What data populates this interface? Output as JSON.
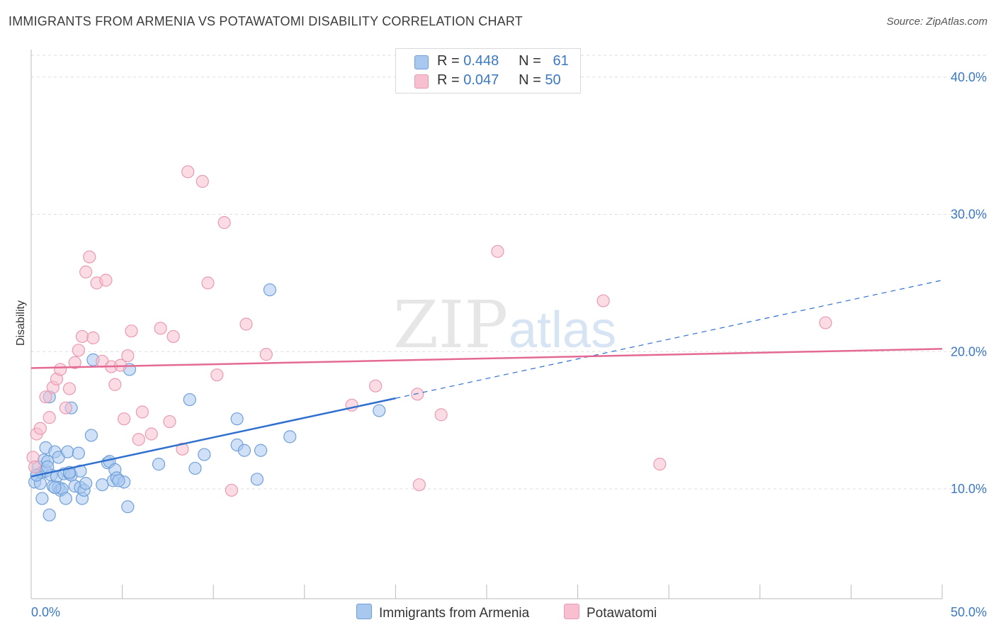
{
  "title": "IMMIGRANTS FROM ARMENIA VS POTAWATOMI DISABILITY CORRELATION CHART",
  "source": "Source: ZipAtlas.com",
  "watermark": {
    "zip": "ZIP",
    "atlas": "atlas"
  },
  "legend": {
    "rows": [
      {
        "r_label": "R =",
        "r_value": "0.448",
        "n_label": "N =",
        "n_value": "61"
      },
      {
        "r_label": "R =",
        "r_value": "0.047",
        "n_label": "N =",
        "n_value": "50"
      }
    ]
  },
  "bottom_legend": {
    "series1": "Immigrants from Armenia",
    "series2": "Potawatomi"
  },
  "colors": {
    "blue_fill": "#a9c8f0",
    "blue_stroke": "#6f9fd8",
    "blue_line": "#2f6fce",
    "pink_fill": "#f7bfd0",
    "pink_stroke": "#e89ab3",
    "pink_line": "#e46a94",
    "tick_text": "#3b78c4",
    "grid": "#dddddd"
  },
  "chart_data": {
    "type": "scatter",
    "title": "IMMIGRANTS FROM ARMENIA VS POTAWATOMI DISABILITY CORRELATION CHART",
    "xlabel": "",
    "ylabel": "Disability",
    "xlim": [
      0,
      50
    ],
    "ylim": [
      2,
      42
    ],
    "x_tick_labels": [
      "0.0%",
      "50.0%"
    ],
    "y_ticks": [
      10,
      20,
      30,
      40
    ],
    "y_tick_labels": [
      "10.0%",
      "20.0%",
      "30.0%",
      "40.0%"
    ],
    "grid": true,
    "legend_position": "top-center",
    "series": [
      {
        "name": "Immigrants from Armenia",
        "color": "#6f9fd8",
        "points": [
          [
            0.2,
            10.5
          ],
          [
            0.3,
            11.0
          ],
          [
            0.4,
            11.6
          ],
          [
            0.5,
            10.4
          ],
          [
            0.6,
            11.2
          ],
          [
            0.6,
            9.3
          ],
          [
            0.7,
            12.1
          ],
          [
            0.8,
            13.0
          ],
          [
            0.8,
            11.3
          ],
          [
            0.9,
            12.0
          ],
          [
            1.0,
            16.7
          ],
          [
            1.0,
            8.1
          ],
          [
            1.1,
            11.0
          ],
          [
            1.2,
            10.2
          ],
          [
            1.3,
            12.7
          ],
          [
            1.4,
            10.9
          ],
          [
            1.5,
            10.1
          ],
          [
            1.5,
            12.3
          ],
          [
            1.6,
            9.9
          ],
          [
            1.7,
            10.0
          ],
          [
            1.8,
            11.1
          ],
          [
            1.9,
            9.3
          ],
          [
            2.0,
            12.7
          ],
          [
            2.1,
            11.1
          ],
          [
            2.2,
            11.0
          ],
          [
            2.2,
            15.9
          ],
          [
            2.4,
            10.2
          ],
          [
            2.6,
            12.6
          ],
          [
            2.7,
            11.3
          ],
          [
            2.7,
            10.1
          ],
          [
            2.8,
            9.3
          ],
          [
            2.9,
            9.9
          ],
          [
            3.3,
            13.9
          ],
          [
            3.4,
            19.4
          ],
          [
            3.9,
            10.3
          ],
          [
            4.2,
            11.9
          ],
          [
            4.3,
            12.0
          ],
          [
            4.5,
            10.6
          ],
          [
            4.6,
            11.4
          ],
          [
            4.7,
            10.8
          ],
          [
            5.1,
            10.5
          ],
          [
            5.3,
            8.7
          ],
          [
            5.4,
            18.7
          ],
          [
            7.0,
            11.8
          ],
          [
            8.7,
            16.5
          ],
          [
            9.0,
            11.5
          ],
          [
            9.5,
            12.5
          ],
          [
            11.3,
            15.1
          ],
          [
            11.3,
            13.2
          ],
          [
            11.7,
            12.8
          ],
          [
            12.4,
            10.7
          ],
          [
            12.6,
            12.8
          ],
          [
            13.1,
            24.5
          ],
          [
            14.2,
            13.8
          ],
          [
            19.1,
            15.7
          ],
          [
            0.3,
            11.0
          ],
          [
            0.9,
            11.6
          ],
          [
            1.3,
            10.1
          ],
          [
            2.1,
            11.2
          ],
          [
            3.0,
            10.4
          ],
          [
            4.8,
            10.6
          ]
        ],
        "trend": {
          "x0": 0,
          "y0": 10.9,
          "x1": 20,
          "y1": 16.6,
          "dashed_to_x": 50,
          "dashed_to_y": 25.2
        }
      },
      {
        "name": "Potawatomi",
        "color": "#e89ab3",
        "points": [
          [
            0.1,
            12.3
          ],
          [
            0.2,
            11.6
          ],
          [
            0.3,
            14.0
          ],
          [
            0.5,
            14.4
          ],
          [
            0.8,
            16.7
          ],
          [
            1.0,
            15.2
          ],
          [
            1.2,
            17.4
          ],
          [
            1.4,
            18.0
          ],
          [
            1.6,
            18.7
          ],
          [
            1.9,
            15.9
          ],
          [
            2.1,
            17.3
          ],
          [
            2.4,
            19.2
          ],
          [
            2.6,
            20.1
          ],
          [
            2.8,
            21.1
          ],
          [
            3.0,
            25.8
          ],
          [
            3.2,
            26.9
          ],
          [
            3.4,
            21.0
          ],
          [
            3.6,
            25.0
          ],
          [
            3.9,
            19.3
          ],
          [
            4.1,
            25.2
          ],
          [
            4.4,
            18.9
          ],
          [
            4.6,
            17.6
          ],
          [
            4.9,
            19.0
          ],
          [
            5.1,
            15.1
          ],
          [
            5.3,
            19.7
          ],
          [
            5.5,
            21.5
          ],
          [
            5.9,
            13.6
          ],
          [
            6.1,
            15.6
          ],
          [
            6.6,
            14.0
          ],
          [
            7.1,
            21.7
          ],
          [
            7.6,
            14.9
          ],
          [
            7.8,
            21.1
          ],
          [
            8.3,
            12.9
          ],
          [
            8.6,
            33.1
          ],
          [
            9.4,
            32.4
          ],
          [
            9.7,
            25.0
          ],
          [
            10.2,
            18.3
          ],
          [
            10.6,
            29.4
          ],
          [
            11.0,
            9.9
          ],
          [
            11.8,
            22.0
          ],
          [
            12.9,
            19.8
          ],
          [
            17.6,
            16.1
          ],
          [
            18.9,
            17.5
          ],
          [
            21.2,
            16.9
          ],
          [
            21.3,
            10.3
          ],
          [
            22.5,
            15.4
          ],
          [
            25.6,
            27.3
          ],
          [
            31.4,
            23.7
          ],
          [
            34.5,
            11.8
          ],
          [
            43.6,
            22.1
          ]
        ],
        "trend": {
          "x0": 0,
          "y0": 18.8,
          "x1": 50,
          "y1": 20.2
        }
      }
    ]
  }
}
